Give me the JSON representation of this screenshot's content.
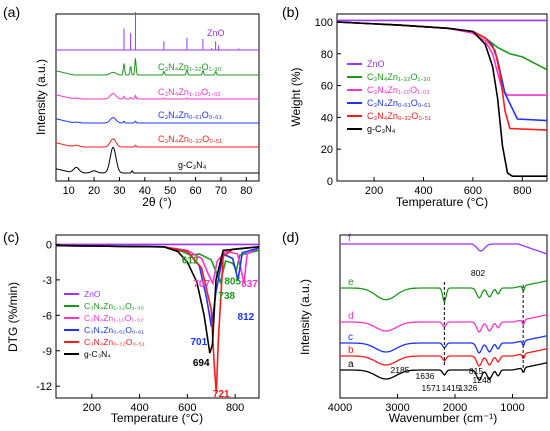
{
  "chart_data": [
    {
      "panel_label": "(a)",
      "type": "line",
      "xlabel": "2θ (°)",
      "ylabel": "Intensity (a.u.)",
      "xlim": [
        5,
        85
      ],
      "xticks": [
        10,
        20,
        30,
        40,
        50,
        60,
        70,
        80
      ],
      "series": [
        {
          "name": "ZnO",
          "color": "#9933ff",
          "style": "sticks",
          "x": [
            31.8,
            34.4,
            36.3,
            47.5,
            56.6,
            62.9,
            66.4,
            67.9,
            69.1,
            72.6,
            77.0
          ],
          "y": [
            57,
            44,
            100,
            23,
            32,
            29,
            5,
            23,
            12,
            2,
            4
          ]
        },
        {
          "name": "C₃N₄Zn₁.₃₂O₁.₃₀",
          "color": "#1a9a1a",
          "x": [
            5,
            27.5,
            31.8,
            34.4,
            36.3,
            47.5,
            56.6,
            62.9,
            67.9,
            85
          ],
          "y": [
            0,
            3,
            13,
            10,
            19,
            4,
            6,
            5,
            4,
            0
          ]
        },
        {
          "name": "C₃N₄Zn₁.₁₀O₁.₀₂",
          "color": "#ff33cc",
          "x": [
            5,
            13,
            27.5,
            31.8,
            34.4,
            36.3,
            47.5,
            56.6,
            85
          ],
          "y": [
            0,
            1,
            6,
            3,
            2,
            4,
            1,
            1,
            0
          ]
        },
        {
          "name": "C₃N₄Zn₀.₆₁O₀.₆₁",
          "color": "#1a33ff",
          "x": [
            5,
            13,
            27.5,
            31.8,
            36.3,
            85
          ],
          "y": [
            0,
            1,
            6,
            2,
            2,
            0
          ]
        },
        {
          "name": "C₃N₄Zn₀.₃₂O₀.₅₁",
          "color": "#ff1a1a",
          "x": [
            5,
            13,
            27.5,
            36.3,
            85
          ],
          "y": [
            0,
            2,
            9,
            2,
            0
          ]
        },
        {
          "name": "g-C₃N₄",
          "color": "#000000",
          "x": [
            5,
            13,
            20,
            27.5,
            35,
            85
          ],
          "y": [
            0,
            5,
            2,
            23,
            2,
            0
          ]
        }
      ]
    },
    {
      "panel_label": "(b)",
      "type": "line",
      "xlabel": "Temperature (°C)",
      "ylabel": "Weight (%)",
      "xlim": [
        50,
        900
      ],
      "ylim": [
        0,
        105
      ],
      "xticks": [
        200,
        400,
        600,
        800
      ],
      "yticks": [
        0,
        20,
        40,
        60,
        80,
        100
      ],
      "series": [
        {
          "name": "ZnO",
          "color": "#9933ff",
          "x": [
            50,
            900
          ],
          "y": [
            101,
            101
          ]
        },
        {
          "name": "C₃N₄Zn₁.₃₂O₁.₃₀",
          "color": "#1a9a1a",
          "x": [
            50,
            300,
            500,
            600,
            650,
            700,
            750,
            800,
            900
          ],
          "y": [
            100,
            98,
            96,
            94,
            90,
            84,
            80,
            78,
            70
          ]
        },
        {
          "name": "C₃N₄Zn₁.₁₀O₁.₀₂",
          "color": "#ff33cc",
          "x": [
            50,
            300,
            500,
            600,
            650,
            680,
            700,
            720,
            740,
            900
          ],
          "y": [
            100,
            98,
            96,
            93,
            88,
            80,
            68,
            57,
            54,
            54
          ]
        },
        {
          "name": "C₃N₄Zn₀.₆₁O₀.₆₁",
          "color": "#1a33ff",
          "x": [
            50,
            300,
            500,
            600,
            650,
            680,
            700,
            730,
            780,
            900
          ],
          "y": [
            100,
            98,
            96,
            94,
            90,
            85,
            76,
            55,
            39,
            38
          ]
        },
        {
          "name": "C₃N₄Zn₀.₃₂O₀.₅₁",
          "color": "#ff1a1a",
          "x": [
            50,
            300,
            500,
            600,
            650,
            690,
            710,
            730,
            750,
            900
          ],
          "y": [
            100,
            98,
            96,
            94,
            90,
            82,
            67,
            44,
            33,
            32
          ]
        },
        {
          "name": "g-C₃N₄",
          "color": "#000000",
          "x": [
            50,
            300,
            500,
            600,
            650,
            680,
            700,
            720,
            740,
            760,
            900
          ],
          "y": [
            100,
            98,
            96,
            94,
            86,
            72,
            52,
            22,
            5,
            3,
            3
          ]
        }
      ]
    },
    {
      "panel_label": "(c)",
      "type": "line",
      "xlabel": "Temperature (°C)",
      "ylabel": "DTG (%/min)",
      "xlim": [
        50,
        900
      ],
      "ylim": [
        -13,
        0.8
      ],
      "xticks": [
        200,
        400,
        600,
        800
      ],
      "yticks": [
        0,
        -3,
        -6,
        -9,
        -12
      ],
      "annotations": [
        {
          "text": "612",
          "x": 612,
          "y": -1.6,
          "color": "#1a9a1a"
        },
        {
          "text": "707",
          "x": 660,
          "y": -3.6,
          "color": "#ff33cc"
        },
        {
          "text": "805",
          "x": 790,
          "y": -3.4,
          "color": "#1a9a1a"
        },
        {
          "text": "837",
          "x": 860,
          "y": -3.6,
          "color": "#ff33cc"
        },
        {
          "text": "738",
          "x": 765,
          "y": -4.6,
          "color": "#1a9a1a"
        },
        {
          "text": "812",
          "x": 845,
          "y": -6.4,
          "color": "#1a33ff"
        },
        {
          "text": "701",
          "x": 648,
          "y": -8.5,
          "color": "#1a33ff"
        },
        {
          "text": "694",
          "x": 658,
          "y": -10.3,
          "color": "#000000"
        },
        {
          "text": "721",
          "x": 742,
          "y": -12.9,
          "color": "#ff1a1a"
        }
      ],
      "series": [
        {
          "name": "ZnO",
          "color": "#9933ff",
          "x": [
            50,
            900
          ],
          "y": [
            0,
            0
          ]
        },
        {
          "name": "C₃N₄Zn₁.₃₂O₁.₃₀",
          "color": "#1a9a1a",
          "x": [
            50,
            500,
            580,
            612,
            650,
            700,
            738,
            760,
            790,
            805,
            820,
            900
          ],
          "y": [
            -0.1,
            -0.2,
            -0.6,
            -0.9,
            -0.8,
            -1.3,
            -3.2,
            -1.4,
            -1.6,
            -2.2,
            -0.9,
            -0.5
          ]
        },
        {
          "name": "C₃N₄Zn₁.₁₀O₁.₀₂",
          "color": "#ff33cc",
          "x": [
            50,
            500,
            600,
            660,
            690,
            707,
            725,
            760,
            810,
            830,
            837,
            850,
            900
          ],
          "y": [
            -0.1,
            -0.2,
            -0.5,
            -1.2,
            -2.6,
            -3.3,
            -1.4,
            -0.6,
            -0.8,
            -2.6,
            -3.3,
            -0.8,
            -0.3
          ]
        },
        {
          "name": "C₃N₄Zn₀.₆₁O₀.₆₁",
          "color": "#1a33ff",
          "x": [
            50,
            500,
            600,
            650,
            680,
            701,
            720,
            750,
            790,
            812,
            830,
            900
          ],
          "y": [
            -0.1,
            -0.2,
            -0.6,
            -1.8,
            -4.5,
            -7.0,
            -4.0,
            -0.8,
            -1.2,
            -3.0,
            -0.7,
            -0.3
          ]
        },
        {
          "name": "C₃N₄Zn₀.₃₂O₀.₅₁",
          "color": "#ff1a1a",
          "x": [
            50,
            500,
            600,
            660,
            700,
            712,
            721,
            730,
            750,
            790,
            900
          ],
          "y": [
            -0.1,
            -0.2,
            -0.6,
            -2.0,
            -5.5,
            -10.0,
            -12.6,
            -8.0,
            -1.0,
            -0.4,
            -0.2
          ]
        },
        {
          "name": "g-C₃N₄",
          "color": "#000000",
          "x": [
            50,
            500,
            560,
            600,
            640,
            670,
            694,
            705,
            720,
            750,
            900
          ],
          "y": [
            -0.1,
            -0.2,
            -0.6,
            -1.5,
            -3.2,
            -6.0,
            -9.2,
            -8.5,
            -3.0,
            -0.5,
            -0.2
          ]
        }
      ]
    },
    {
      "panel_label": "(d)",
      "type": "line",
      "xlabel": "Wavenumber (cm⁻¹)",
      "ylabel": "Intensity (a.u.)",
      "xlim": [
        4000,
        400
      ],
      "xticks": [
        4000,
        3000,
        2000,
        1000
      ],
      "annotations": [
        {
          "text": "802",
          "x": 802
        },
        {
          "text": "2185",
          "x": 2185
        },
        {
          "text": "1636",
          "x": 1636
        },
        {
          "text": "1571",
          "x": 1571
        },
        {
          "text": "1415",
          "x": 1415
        },
        {
          "text": "1326",
          "x": 1326
        },
        {
          "text": "1248",
          "x": 1248
        },
        {
          "text": "815",
          "x": 815
        }
      ],
      "series": [
        {
          "name": "f",
          "color": "#9933ff",
          "offset": 0
        },
        {
          "name": "e",
          "color": "#1a9a1a",
          "offset": 0
        },
        {
          "name": "d",
          "color": "#ff33cc",
          "offset": 0
        },
        {
          "name": "c",
          "color": "#1a33ff",
          "offset": 0
        },
        {
          "name": "b",
          "color": "#ff1a1a",
          "offset": 0
        },
        {
          "name": "a",
          "color": "#000000",
          "offset": 0
        }
      ]
    }
  ]
}
